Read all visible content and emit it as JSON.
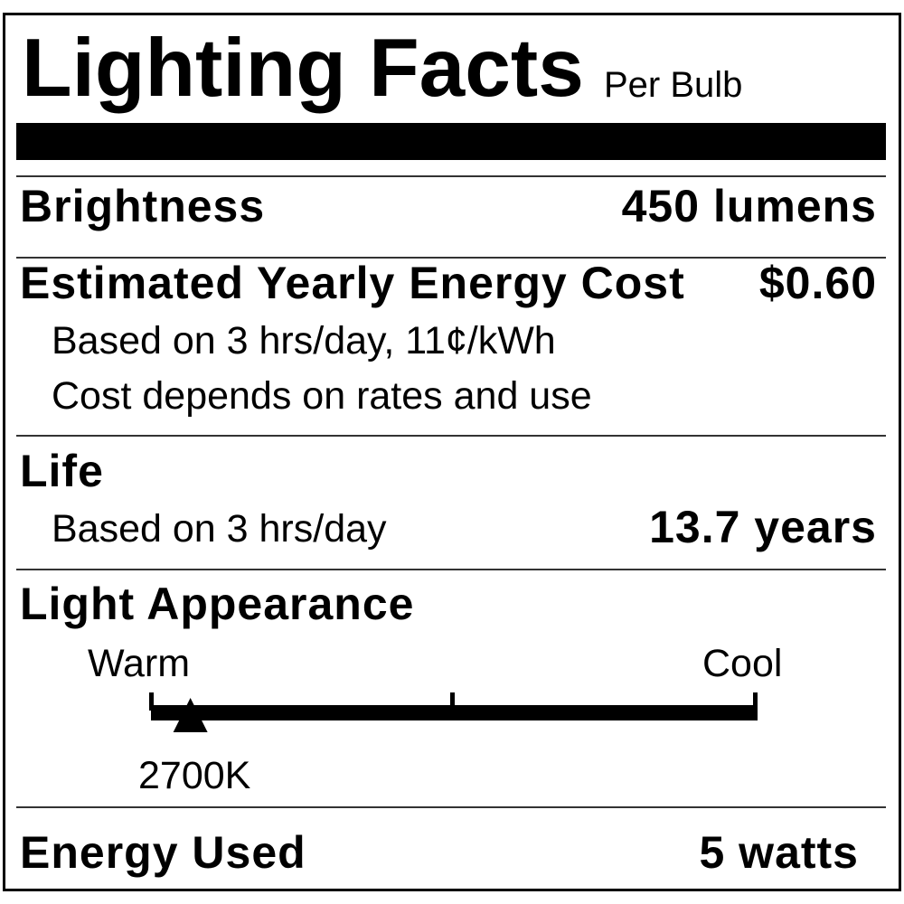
{
  "header": {
    "title": "Lighting Facts",
    "subtitle": "Per Bulb"
  },
  "brightness": {
    "label": "Brightness",
    "value": "450 lumens"
  },
  "cost": {
    "label": "Estimated Yearly Energy Cost",
    "value": "$0.60",
    "note1": "Based on 3 hrs/day, 11¢/kWh",
    "note2": "Cost depends on rates and use"
  },
  "life": {
    "label": "Life",
    "note": "Based on 3 hrs/day",
    "value": "13.7 years"
  },
  "appearance": {
    "label": "Light Appearance",
    "warm_label": "Warm",
    "cool_label": "Cool",
    "marker_value": "2700K",
    "marker_position_fraction": 0.065
  },
  "energy": {
    "label": "Energy Used",
    "value": "5 watts"
  }
}
